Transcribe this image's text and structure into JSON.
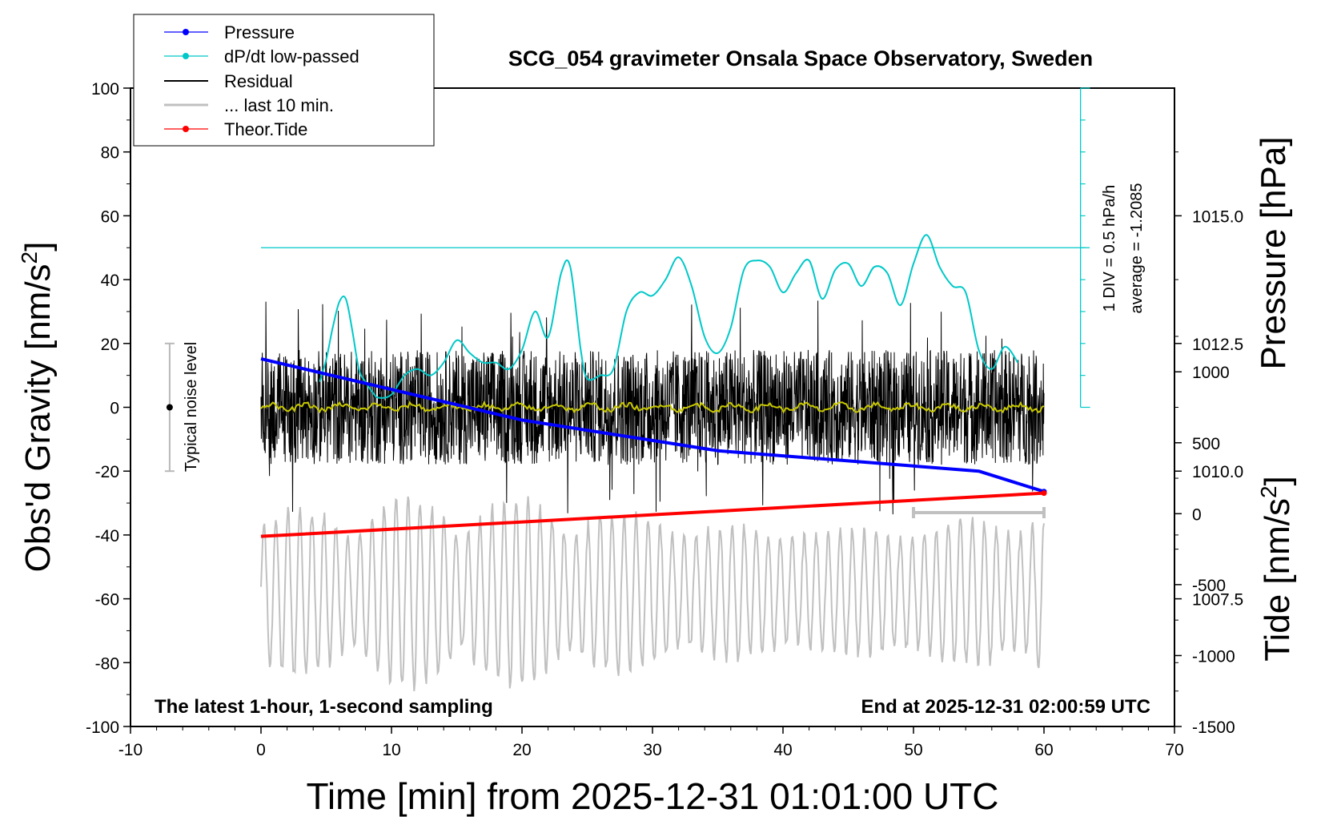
{
  "chart_data": {
    "type": "line",
    "title": "SCG_054 gravimeter Onsala Space Observatory, Sweden",
    "xlabel": "Time [min] from 2025-12-31 01:01:00 UTC",
    "ylabel_left": "Obs'd Gravity [nm/s",
    "ylabel_right_top": "Pressure [hPa]",
    "ylabel_right_bottom": "Tide [nm/s",
    "unit_sup": "2",
    "unit_close": "]",
    "xlim": [
      -10,
      70
    ],
    "ylim_gravity": [
      -100,
      100
    ],
    "ylim_pressure": [
      1005.0,
      1017.5
    ],
    "ylim_tide": [
      -1500,
      3000
    ],
    "x_ticks": [
      "-10",
      "0",
      "10",
      "20",
      "30",
      "40",
      "50",
      "60",
      "70"
    ],
    "x_tick_values": [
      -10,
      0,
      10,
      20,
      30,
      40,
      50,
      60,
      70
    ],
    "gravity_ticks": [
      "100",
      "80",
      "60",
      "40",
      "20",
      "0",
      "-20",
      "-40",
      "-60",
      "-80",
      "-100"
    ],
    "gravity_tick_values": [
      100,
      80,
      60,
      40,
      20,
      0,
      -20,
      -40,
      -60,
      -80,
      -100
    ],
    "pressure_ticks": [
      "1015.0",
      "1012.5",
      "1010.0",
      "1007.5"
    ],
    "pressure_tick_values": [
      1015.0,
      1012.5,
      1010.0,
      1007.5
    ],
    "tide_ticks": [
      "1000",
      "500",
      "0",
      "-500",
      "-1000",
      "-1500"
    ],
    "tide_tick_values": [
      1000,
      500,
      0,
      -500,
      -1000,
      -1500
    ],
    "legend": {
      "position": "top-left",
      "entries": [
        {
          "label": "Pressure",
          "color": "#0000ff",
          "marker": "dot"
        },
        {
          "label": "dP/dt low-passed",
          "color": "#00c8c8",
          "marker": "dot"
        },
        {
          "label": "Residual",
          "color": "#000000",
          "marker": "none"
        },
        {
          "label": "... last 10 min.",
          "color": "#c0c0c0",
          "marker": "none"
        },
        {
          "label": "Theor.Tide",
          "color": "#ff0000",
          "marker": "dot"
        }
      ]
    },
    "annotations": {
      "bottom_left": "The latest 1-hour, 1-second sampling",
      "bottom_right": "End at 2025-12-31 02:00:59 UTC",
      "noise_label": "Typical noise level",
      "noise_range": [
        -20,
        20
      ],
      "dpdt_scale": "1 DIV = 0.5 hPa/h",
      "dpdt_average": "average = -1.2085",
      "dpdt_ref_level_gravity": 50
    },
    "series": [
      {
        "name": "Pressure",
        "axis": "pressure",
        "color": "#0000ff",
        "x": [
          0,
          5,
          10,
          15,
          20,
          25,
          30,
          35,
          40,
          45,
          50,
          55,
          60
        ],
        "values": [
          1012.2,
          1011.9,
          1011.6,
          1011.3,
          1011.0,
          1010.8,
          1010.6,
          1010.4,
          1010.3,
          1010.2,
          1010.1,
          1010.0,
          1009.6
        ]
      },
      {
        "name": "dP/dt low-passed",
        "axis": "gravity",
        "color": "#00c8c8",
        "x": [
          4.5,
          5,
          5.5,
          6,
          6.5,
          7,
          7.5,
          8,
          8.5,
          9,
          10,
          11,
          12,
          13,
          14,
          15,
          16,
          17,
          18,
          19,
          20,
          21,
          22,
          23,
          23.7,
          24.5,
          25,
          26,
          27,
          28,
          29,
          30,
          31,
          32,
          33,
          34,
          35,
          36,
          37,
          38,
          39,
          40,
          41,
          42,
          43,
          44,
          45,
          46,
          47,
          48,
          49,
          50,
          51,
          52,
          53,
          54,
          55,
          56,
          57,
          58
        ],
        "values": [
          8,
          15,
          25,
          33,
          34,
          24,
          12,
          8,
          5,
          3,
          4,
          10,
          12,
          10,
          14,
          21,
          17,
          14,
          14,
          12,
          18,
          30,
          22,
          42,
          44,
          18,
          9,
          10,
          12,
          30,
          36,
          35,
          40,
          47,
          38,
          22,
          17,
          25,
          43,
          46,
          44,
          36,
          42,
          46,
          34,
          43,
          45,
          38,
          44,
          42,
          32,
          45,
          54,
          44,
          38,
          36,
          18,
          12,
          19,
          14
        ]
      },
      {
        "name": "Residual",
        "axis": "gravity",
        "color": "#000000",
        "x_range": [
          0,
          60
        ],
        "amplitude": 18,
        "extremes": [
          40,
          -38
        ]
      },
      {
        "name": "Residual low-passed",
        "axis": "gravity",
        "color": "#c8c800",
        "x_range": [
          0,
          60
        ],
        "amplitude": 1.5
      },
      {
        "name": "... last 10 min.",
        "axis": "gravity",
        "color": "#c0c0c0",
        "x_range": [
          0,
          60
        ],
        "baseline": -58,
        "amplitude": 30,
        "window_minutes": [
          50,
          60
        ]
      },
      {
        "name": "Theor.Tide",
        "axis": "tide",
        "color": "#ff0000",
        "x": [
          0,
          60
        ],
        "values": [
          -160,
          145
        ]
      }
    ]
  }
}
